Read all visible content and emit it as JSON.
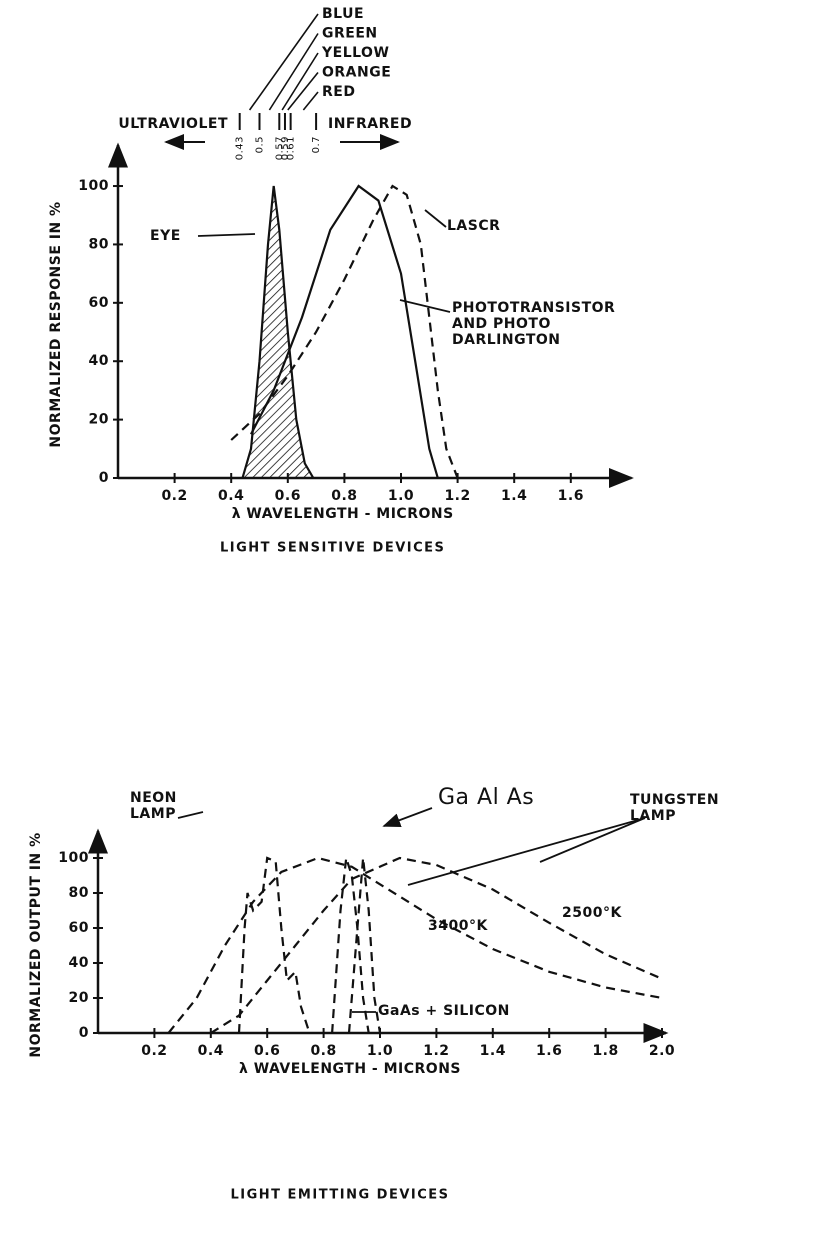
{
  "chart_data": [
    {
      "type": "line",
      "title": "LIGHT SENSITIVE DEVICES",
      "x_label": "λ WAVELENGTH - MICRONS",
      "y_label": "NORMALIZED RESPONSE IN %",
      "xlim": [
        0,
        1.8
      ],
      "ylim": [
        0,
        112
      ],
      "xticks": [
        0.2,
        0.4,
        0.6,
        0.8,
        {
          "value": 1,
          "label": "1.0"
        },
        1.2,
        1.4,
        1.6
      ],
      "yticks": [
        0,
        20,
        40,
        60,
        80,
        100
      ],
      "spectrum": {
        "left": "ULTRAVIOLET",
        "right": "INFRARED",
        "labels": [
          "BLUE",
          "GREEN",
          "YELLOW",
          "ORANGE",
          "RED"
        ],
        "edges": [
          0.43,
          0.5,
          0.57,
          0.59,
          0.61,
          0.7
        ]
      },
      "series": [
        {
          "name": "EYE",
          "color": "#111111",
          "line_style": "solid",
          "fill": "hatch",
          "x": [
            0.44,
            0.47,
            0.5,
            0.53,
            0.55,
            0.57,
            0.6,
            0.63,
            0.66,
            0.69
          ],
          "values": [
            0,
            10,
            40,
            80,
            100,
            85,
            50,
            20,
            5,
            0
          ]
        },
        {
          "name": "PHOTOTRANSISTOR AND PHOTO DARLINGTON",
          "color": "#111111",
          "line_style": "solid",
          "x": [
            0.47,
            0.55,
            0.65,
            0.75,
            0.85,
            0.92,
            1.0,
            1.05,
            1.1,
            1.13
          ],
          "values": [
            15,
            30,
            55,
            85,
            100,
            95,
            70,
            40,
            10,
            0
          ]
        },
        {
          "name": "LASCR",
          "color": "#111111",
          "line_style": "dashed",
          "x": [
            0.4,
            0.5,
            0.6,
            0.7,
            0.8,
            0.9,
            0.97,
            1.02,
            1.07,
            1.1,
            1.13,
            1.16,
            1.2
          ],
          "values": [
            13,
            22,
            35,
            50,
            68,
            88,
            100,
            97,
            80,
            55,
            30,
            10,
            0
          ]
        }
      ]
    },
    {
      "type": "line",
      "title": "LIGHT EMITTING DEVICES",
      "x_label": "λ WAVELENGTH - MICRONS",
      "y_label": "NORMALIZED OUTPUT IN %",
      "annotations": [
        "TUNGSTEN LAMP"
      ],
      "xlim": [
        0,
        2
      ],
      "ylim": [
        0,
        112
      ],
      "xticks": [
        0.2,
        0.4,
        0.6,
        0.8,
        {
          "value": 1,
          "label": "1.0"
        },
        1.2,
        1.4,
        1.6,
        1.8,
        {
          "value": 2,
          "label": "2.0"
        }
      ],
      "yticks": [
        0,
        20,
        40,
        60,
        80,
        100
      ],
      "series": [
        {
          "name": "NEON LAMP",
          "color": "#111111",
          "line_style": "dashed",
          "x": [
            0.5,
            0.52,
            0.53,
            0.55,
            0.58,
            0.6,
            0.63,
            0.65,
            0.67,
            0.7,
            0.72,
            0.75
          ],
          "values": [
            0,
            60,
            80,
            70,
            75,
            100,
            98,
            60,
            30,
            35,
            15,
            0
          ]
        },
        {
          "name": "Ga Al As",
          "color": "#111111",
          "line_style": "dashed",
          "x": [
            0.83,
            0.86,
            0.88,
            0.9,
            0.92,
            0.94,
            0.96
          ],
          "values": [
            0,
            70,
            100,
            90,
            60,
            20,
            0
          ]
        },
        {
          "name": "GaAs + SILICON",
          "color": "#111111",
          "line_style": "dashed",
          "x": [
            0.89,
            0.92,
            0.94,
            0.96,
            0.98,
            1.0
          ],
          "values": [
            0,
            60,
            100,
            70,
            20,
            0
          ]
        },
        {
          "name": "3400°K",
          "color": "#111111",
          "line_style": "dashed",
          "x": [
            0.25,
            0.35,
            0.45,
            0.55,
            0.65,
            0.78,
            0.9,
            1.0,
            1.2,
            1.4,
            1.6,
            1.8,
            2.0
          ],
          "values": [
            0,
            20,
            50,
            75,
            92,
            100,
            95,
            85,
            65,
            48,
            35,
            26,
            20
          ]
        },
        {
          "name": "2500°K",
          "color": "#111111",
          "line_style": "dashed",
          "x": [
            0.4,
            0.5,
            0.6,
            0.7,
            0.8,
            0.9,
            1.07,
            1.2,
            1.4,
            1.6,
            1.8,
            2.0
          ],
          "values": [
            0,
            10,
            30,
            50,
            70,
            88,
            100,
            96,
            82,
            63,
            45,
            31
          ]
        }
      ]
    }
  ]
}
